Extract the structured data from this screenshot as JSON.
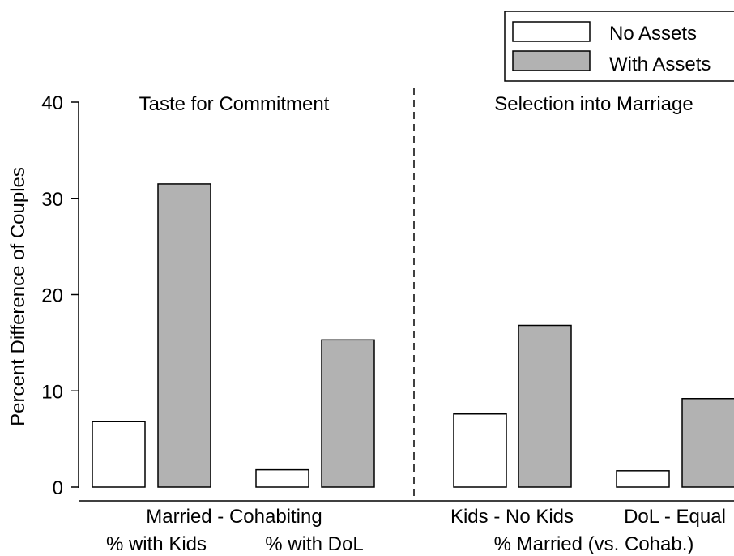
{
  "chart_data": {
    "type": "bar",
    "ylabel": "Percent Difference of Couples",
    "ylim": [
      0,
      40
    ],
    "yticks": [
      0,
      10,
      20,
      30,
      40
    ],
    "grid": false,
    "legend_position": "top-right",
    "colors": {
      "No Assets": "#ffffff",
      "With Assets": "#b2b2b2",
      "outline": "#000000"
    },
    "series": [
      {
        "name": "No Assets",
        "values": [
          6.8,
          1.8,
          7.6,
          1.7
        ]
      },
      {
        "name": "With Assets",
        "values": [
          31.5,
          15.3,
          16.8,
          9.2
        ]
      }
    ],
    "categories": [
      "% with Kids",
      "% with DoL",
      "Kids - No Kids",
      "DoL - Equal"
    ],
    "panels": [
      {
        "title": "Taste for Commitment",
        "group_label": "Married - Cohabiting",
        "categories": [
          "% with Kids",
          "% with DoL"
        ]
      },
      {
        "title": "Selection into Marriage",
        "group_label": "% Married (vs. Cohab.)",
        "categories": [
          "Kids - No Kids",
          "DoL - Equal"
        ]
      }
    ]
  }
}
